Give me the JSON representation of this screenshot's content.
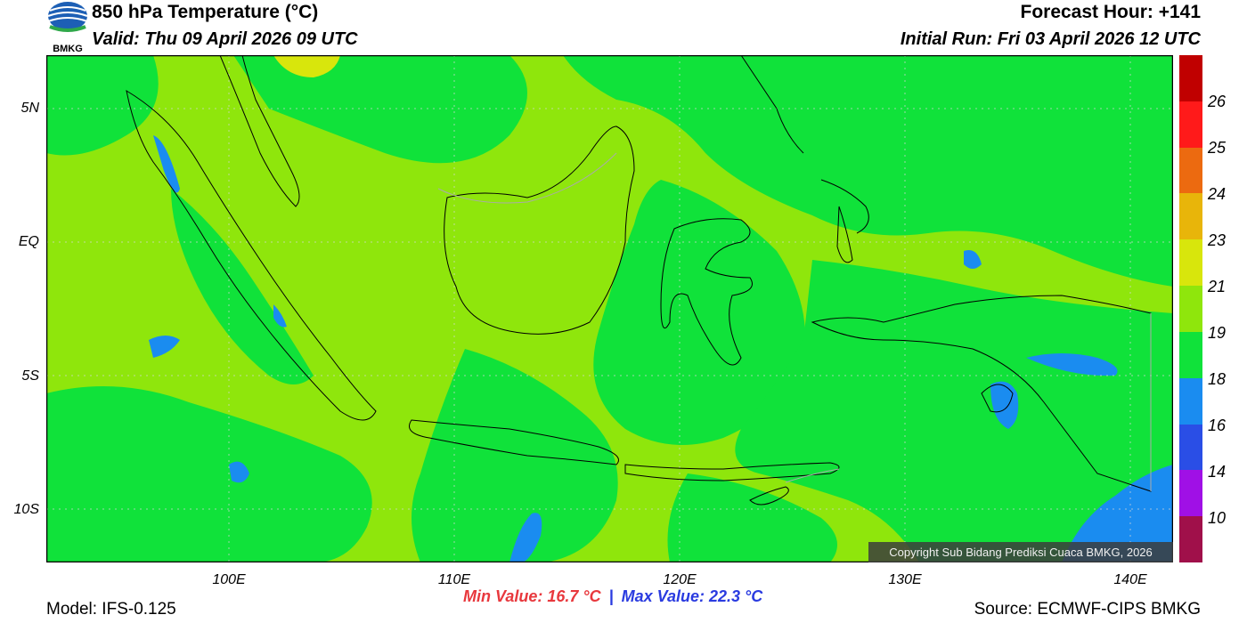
{
  "header": {
    "title": "850 hPa Temperature (°C)",
    "valid": "Valid: Thu 09 April 2026 09 UTC",
    "forecast_hour": "Forecast Hour: +141",
    "initial_run": "Initial Run: Fri 03 April 2026 12 UTC"
  },
  "logo": {
    "text": "BMKG"
  },
  "map": {
    "lat_labels": [
      "5N",
      "EQ",
      "5S",
      "10S"
    ],
    "lon_labels": [
      "100E",
      "110E",
      "120E",
      "130E",
      "140E"
    ],
    "copyright": "Copyright Sub Bidang Prediksi Cuaca BMKG, 2026"
  },
  "colorbar": {
    "labels": [
      "26",
      "25",
      "24",
      "23",
      "21",
      "19",
      "18",
      "16",
      "14",
      "10"
    ],
    "colors": [
      "#c00000",
      "#ff1a1a",
      "#ec6a10",
      "#e8b50a",
      "#d8e60c",
      "#8fe60c",
      "#10e23a",
      "#1a8cf0",
      "#2a4ee6",
      "#a010e6",
      "#a0104a"
    ]
  },
  "footer": {
    "model": "Model: IFS-0.125",
    "min_value": "Min Value: 16.7 °C",
    "separator": "|",
    "max_value": "Max Value: 22.3 °C",
    "source": "Source: ECMWF-CIPS BMKG"
  }
}
